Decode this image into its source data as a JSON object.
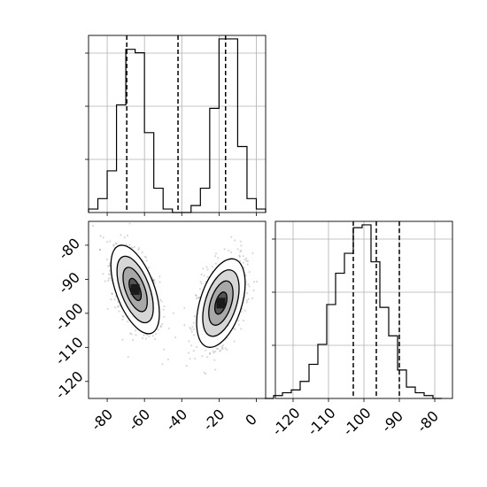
{
  "chart_data": {
    "type": "corner",
    "title": "",
    "xlabel": "",
    "ylabel": "",
    "grid": true,
    "panels": [
      {
        "id": "hist-param-1",
        "type": "histogram-step",
        "xlim": [
          -90,
          5
        ],
        "bin_edges": [
          -90,
          -85,
          -80,
          -75,
          -70,
          -65,
          -60,
          -55,
          -50,
          -45,
          -40,
          -35,
          -30,
          -25,
          -20,
          -15,
          -10,
          -5,
          0,
          5
        ],
        "counts": [
          1,
          4,
          12,
          31,
          47,
          46,
          23,
          7,
          1,
          0,
          0,
          2,
          7,
          30,
          50,
          50,
          19,
          4,
          1
        ],
        "quantile_lines": [
          -69.5,
          -42,
          -16.5
        ]
      },
      {
        "id": "scatter-param-1-vs-param-2",
        "type": "2d-density",
        "xlim": [
          -90,
          5
        ],
        "ylim": [
          -125,
          -73
        ],
        "xticks": [
          -80,
          -60,
          -40,
          -20,
          0
        ],
        "yticks": [
          -80,
          -90,
          -100,
          -110,
          -120
        ],
        "clusters": [
          {
            "center": [
              -65,
              -93
            ],
            "sx": 6.5,
            "sy": 6.5,
            "rho": -0.55,
            "n": 750
          },
          {
            "center": [
              -19,
              -97
            ],
            "sx": 6.5,
            "sy": 6.5,
            "rho": 0.45,
            "n": 750
          }
        ]
      },
      {
        "id": "hist-param-2",
        "type": "histogram-step",
        "xlim": [
          -125,
          -75
        ],
        "bin_edges": [
          -128,
          -125.5,
          -123,
          -120.5,
          -118,
          -115.5,
          -113,
          -110.5,
          -108,
          -105.5,
          -103,
          -100.5,
          -98,
          -95.5,
          -93,
          -90.5,
          -88,
          -85.5,
          -83,
          -80.5,
          -78
        ],
        "counts": [
          0,
          1,
          2,
          3,
          6,
          12,
          19,
          33,
          44,
          51,
          60,
          61,
          48,
          32,
          22,
          10,
          4,
          2,
          1,
          0
        ],
        "quantile_lines": [
          -103,
          -96.5,
          -90
        ],
        "xticks": [
          -120,
          -110,
          -100,
          -90,
          -80
        ]
      }
    ]
  }
}
